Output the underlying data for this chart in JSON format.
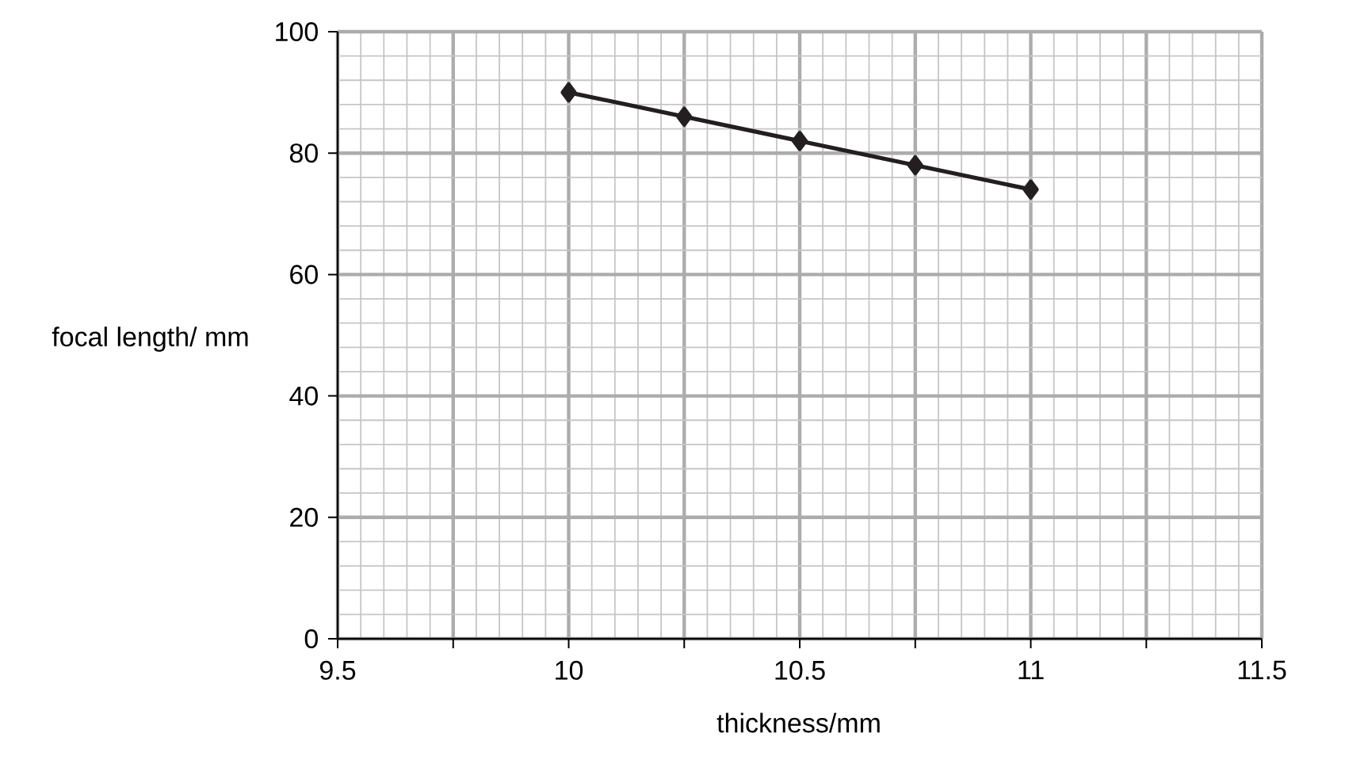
{
  "chart_data": {
    "type": "line",
    "xlabel": "thickness/mm",
    "ylabel": "focal length/ mm",
    "x": [
      10,
      10.25,
      10.5,
      10.75,
      11
    ],
    "series": [
      {
        "color": "#231f20",
        "values": [
          90,
          86,
          82,
          78,
          74
        ]
      }
    ],
    "xlim": [
      9.5,
      11.5
    ],
    "ylim": [
      0,
      100
    ],
    "xticks": [
      9.5,
      {
        "value": 9.75,
        "label": null
      },
      10,
      {
        "value": 10.25,
        "label": null
      },
      10.5,
      {
        "value": 10.75,
        "label": null
      },
      11,
      {
        "value": 11.25,
        "label": null
      },
      11.5
    ],
    "yticks": [
      0,
      20,
      40,
      60,
      80,
      100
    ],
    "grid": true,
    "marker": "diamond",
    "line_style": "solid"
  }
}
